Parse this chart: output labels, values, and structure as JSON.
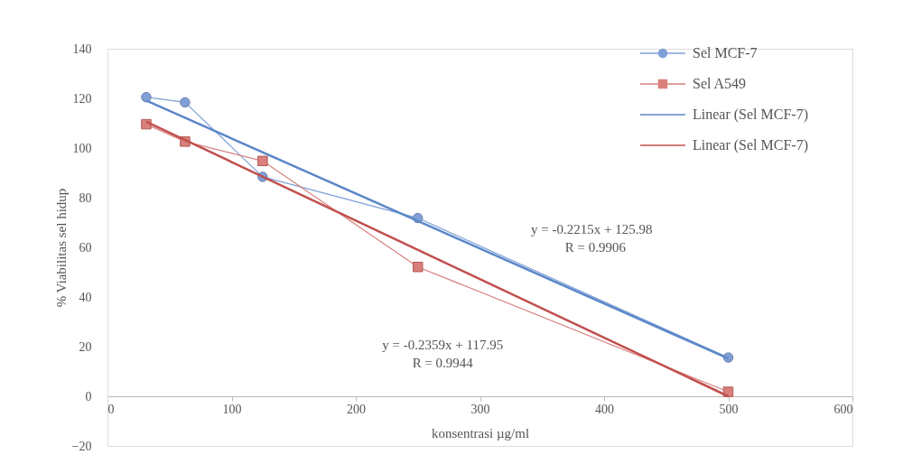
{
  "chart_data": {
    "type": "line",
    "xlabel": "konsentrasi µg/ml",
    "ylabel": "% Viabilitas sel hidup",
    "xlim": [
      0,
      600
    ],
    "xticks": [
      0,
      100,
      200,
      300,
      400,
      500,
      600
    ],
    "ylim": [
      -20,
      140
    ],
    "yticks": [
      -20,
      0,
      20,
      40,
      60,
      80,
      100,
      120,
      140
    ],
    "grid": false,
    "legend": "top right",
    "series": [
      {
        "name": "Sel MCF-7",
        "marker": "circle",
        "color": "#7f9fd6",
        "x": [
          31.25,
          62.5,
          125,
          250,
          500
        ],
        "values": [
          120.5,
          118.4,
          88.4,
          71.8,
          15.6
        ]
      },
      {
        "name": "Sel A549",
        "marker": "square",
        "color": "#d9807c",
        "x": [
          31.25,
          62.5,
          125,
          250,
          500
        ],
        "values": [
          109.6,
          102.6,
          94.8,
          52.1,
          1.8
        ]
      },
      {
        "name": "Linear (Sel MCF-7)",
        "marker": "none",
        "color": "#5b87c8",
        "x": [
          31.25,
          500
        ],
        "values": [
          119.1,
          15.2
        ]
      },
      {
        "name": "Linear (Sel MCF-7)",
        "marker": "none",
        "color": "#c0504d",
        "x": [
          31.25,
          500
        ],
        "values": [
          110.6,
          0.0
        ]
      }
    ],
    "annotations": [
      "y = -0.2215x + 125.98",
      "R = 0.9906",
      "y = -0.2359x + 117.95",
      "R = 0.9944"
    ]
  }
}
